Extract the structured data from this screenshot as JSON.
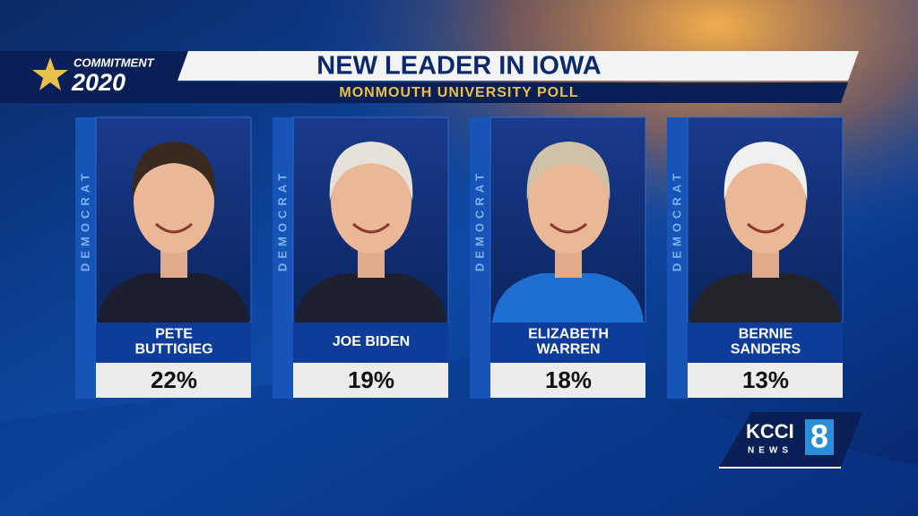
{
  "branding": {
    "series": "COMMITMENT",
    "year": "2020"
  },
  "header": {
    "title": "NEW LEADER IN IOWA",
    "subtitle": "MONMOUTH UNIVERSITY POLL"
  },
  "candidates": [
    {
      "party": "DEMOCRAT",
      "name_lines": [
        "PETE",
        "BUTTIGIEG"
      ],
      "percent": "22%"
    },
    {
      "party": "DEMOCRAT",
      "name_lines": [
        "JOE BIDEN"
      ],
      "percent": "19%"
    },
    {
      "party": "DEMOCRAT",
      "name_lines": [
        "ELIZABETH",
        "WARREN"
      ],
      "percent": "18%"
    },
    {
      "party": "DEMOCRAT",
      "name_lines": [
        "BERNIE",
        "SANDERS"
      ],
      "percent": "13%"
    }
  ],
  "logo": {
    "station": "KCCI",
    "network": "NEWS",
    "channel": "8"
  }
}
